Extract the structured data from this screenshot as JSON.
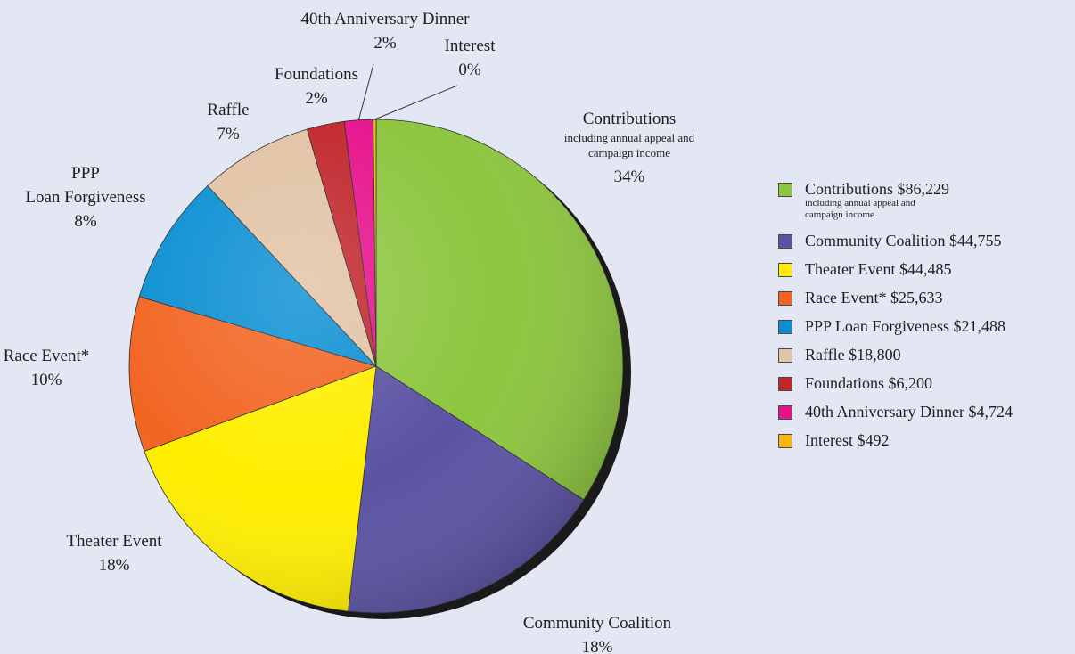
{
  "chart_data": {
    "type": "pie",
    "slices": [
      {
        "name": "Contributions",
        "value": 86229,
        "percent_label": "34%",
        "sub_label": "including annual appeal and campaign income",
        "legend_label": "Contributions $86,229",
        "legend_sub": "including annual appeal and campaign income",
        "color": "#8dc63f"
      },
      {
        "name": "Community Coalition",
        "value": 44755,
        "percent_label": "18%",
        "legend_label": "Community Coalition $44,755",
        "color": "#5b53a3"
      },
      {
        "name": "Theater Event",
        "value": 44485,
        "percent_label": "18%",
        "legend_label": "Theater Event $44,485",
        "color": "#ffee00"
      },
      {
        "name": "Race Event*",
        "value": 25633,
        "percent_label": "10%",
        "legend_label": "Race Event* $25,633",
        "color": "#f26522"
      },
      {
        "name": "PPP Loan Forgiveness",
        "value": 21488,
        "percent_label": "8%",
        "legend_label": "PPP Loan Forgiveness $21,488",
        "color": "#0b8fd3"
      },
      {
        "name": "Raffle",
        "value": 18800,
        "percent_label": "7%",
        "legend_label": "Raffle $18,800",
        "color": "#e2c3a5"
      },
      {
        "name": "Foundations",
        "value": 6200,
        "percent_label": "2%",
        "legend_label": "Foundations $6,200",
        "color": "#c1272d"
      },
      {
        "name": "40th Anniversary Dinner",
        "value": 4724,
        "percent_label": "2%",
        "legend_label": "40th Anniversary Dinner $4,724",
        "color": "#e6148c"
      },
      {
        "name": "Interest",
        "value": 492,
        "percent_label": "0%",
        "legend_label": "Interest $492",
        "color": "#f7b614"
      }
    ],
    "legend_position": "right"
  }
}
